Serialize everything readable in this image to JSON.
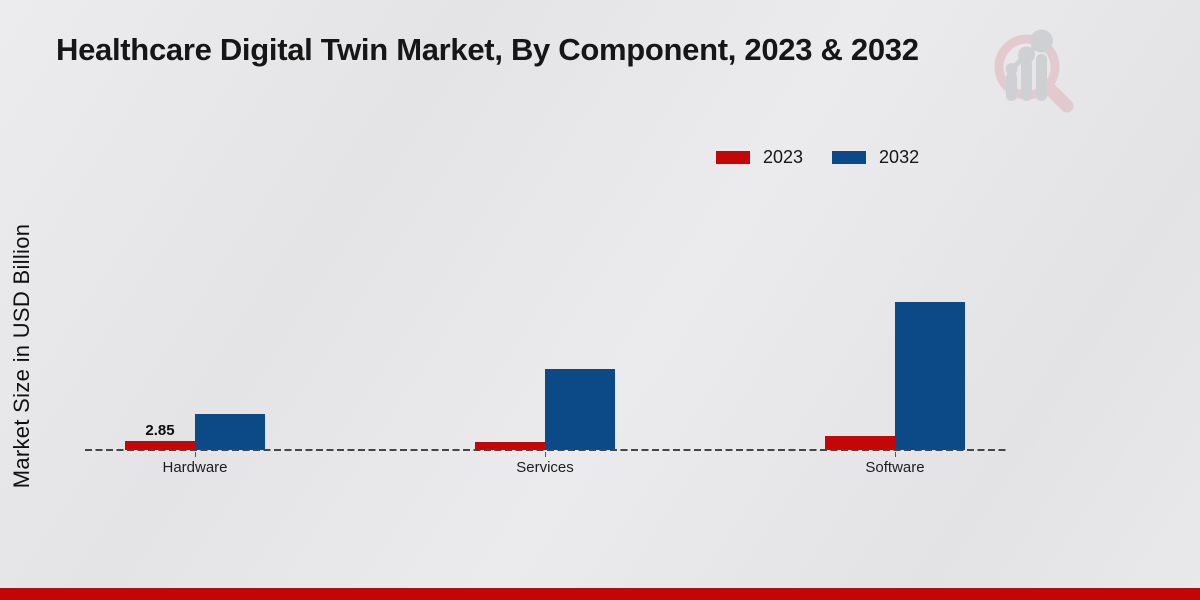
{
  "chart": {
    "title": "Healthcare Digital Twin Market, By Component, 2023 & 2032",
    "ylabel": "Market Size in USD Billion"
  },
  "chart_data": {
    "type": "bar",
    "title": "Healthcare Digital Twin Market, By Component, 2023 & 2032",
    "xlabel": "",
    "ylabel": "Market Size in USD Billion",
    "categories": [
      "Hardware",
      "Services",
      "Software"
    ],
    "series": [
      {
        "name": "2023",
        "color": "#c40606",
        "values": [
          2.85,
          2.6,
          4.4
        ]
      },
      {
        "name": "2032",
        "color": "#0b4a87",
        "values": [
          11.4,
          25.8,
          46.9
        ]
      }
    ],
    "data_labels": [
      {
        "series": "2023",
        "category": "Hardware",
        "text": "2.85"
      }
    ],
    "ylim": [
      0,
      50
    ],
    "gridlines": false,
    "baseline_style": "dashed",
    "legend_position": "top-right",
    "y_axis_ticks_visible": false
  },
  "branding": {
    "logo_name": "mrfr-magnifier-barchart-logo",
    "accent_bar_color": "#c40505",
    "logo_ring_color": "#dfaeb4",
    "logo_bar_color": "#b9bac1"
  }
}
